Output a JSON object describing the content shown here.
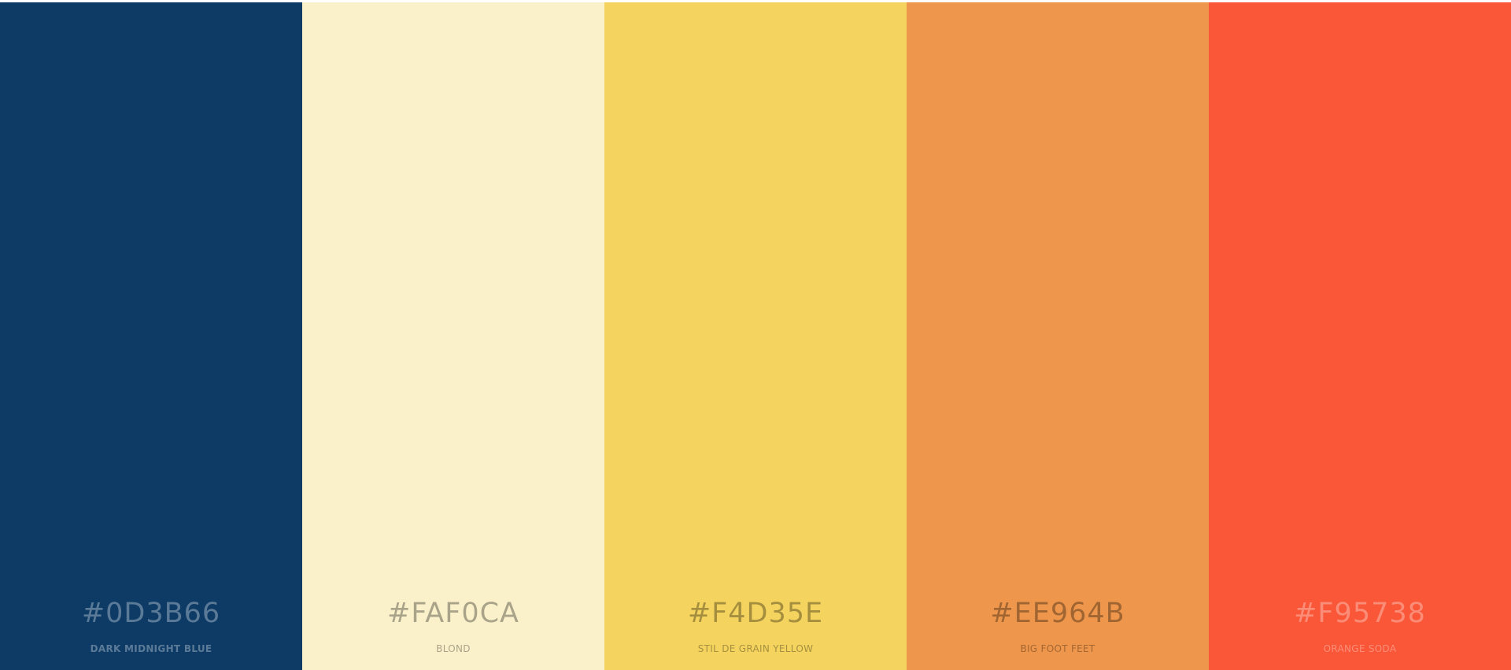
{
  "palette": {
    "swatches": [
      {
        "hex_label": "#0D3B66",
        "name": "DARK MIDNIGHT BLUE",
        "color": "#0D3B66"
      },
      {
        "hex_label": "#FAF0CA",
        "name": "BLOND",
        "color": "#FAF0CA"
      },
      {
        "hex_label": "#F4D35E",
        "name": "STIL DE GRAIN YELLOW",
        "color": "#F4D35E"
      },
      {
        "hex_label": "#EE964B",
        "name": "BIG FOOT FEET",
        "color": "#EE964B"
      },
      {
        "hex_label": "#F95738",
        "name": "ORANGE SODA",
        "color": "#F95738"
      }
    ]
  }
}
